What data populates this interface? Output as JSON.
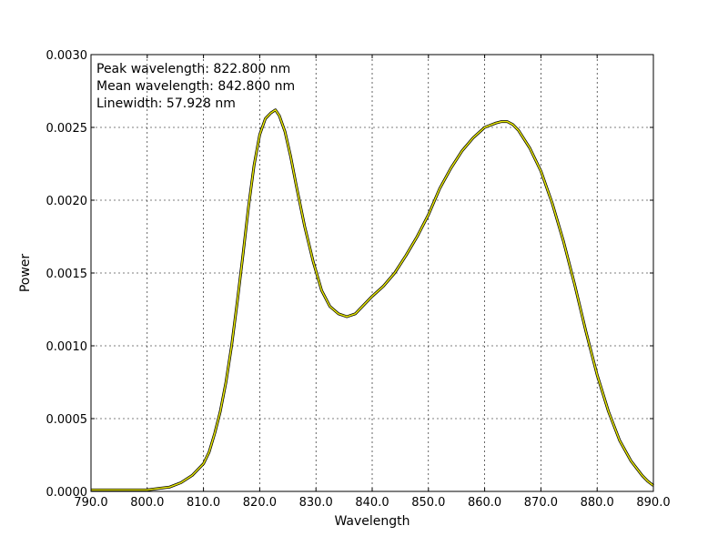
{
  "chart_data": {
    "type": "line",
    "title": "",
    "xlabel": "Wavelength",
    "ylabel": "Power",
    "xlim": [
      790,
      890
    ],
    "ylim": [
      0,
      0.003
    ],
    "x_ticks": [
      "790.0",
      "800.0",
      "810.0",
      "820.0",
      "830.0",
      "840.0",
      "850.0",
      "860.0",
      "870.0",
      "880.0",
      "890.0"
    ],
    "y_ticks": [
      "0.0000",
      "0.0005",
      "0.0010",
      "0.0015",
      "0.0020",
      "0.0025",
      "0.0030"
    ],
    "grid": true,
    "annotations": [
      "Peak wavelength: 822.800 nm",
      "Mean wavelength: 842.800 nm",
      "Linewidth: 57.928 nm"
    ],
    "line_color": "#e6e600",
    "outline_color": "#000000",
    "series": [
      {
        "x": [
          790,
          795,
          800,
          802,
          804,
          806,
          808,
          810,
          811,
          812,
          813,
          814,
          815,
          816,
          817,
          818,
          819,
          820,
          821,
          822,
          822.8,
          823.5,
          824.5,
          825.5,
          826.5,
          828,
          829.5,
          831,
          832.5,
          834,
          835.5,
          837,
          838.5,
          840,
          842,
          844,
          846,
          848,
          850,
          852,
          854,
          856,
          858,
          860,
          862,
          863,
          864,
          865,
          866,
          868,
          870,
          872,
          874,
          876,
          878,
          880,
          882,
          884,
          886,
          888,
          889,
          890
        ],
        "y": [
          1e-05,
          1e-05,
          1e-05,
          2e-05,
          3e-05,
          6e-05,
          0.00011,
          0.00019,
          0.00027,
          0.0004,
          0.00055,
          0.00075,
          0.001,
          0.0013,
          0.00162,
          0.00195,
          0.00224,
          0.00245,
          0.00256,
          0.0026,
          0.00262,
          0.00258,
          0.00247,
          0.0023,
          0.0021,
          0.00182,
          0.00158,
          0.00138,
          0.00127,
          0.00122,
          0.0012,
          0.00122,
          0.00128,
          0.00134,
          0.00141,
          0.0015,
          0.00162,
          0.00175,
          0.0019,
          0.00208,
          0.00222,
          0.00234,
          0.00243,
          0.0025,
          0.00253,
          0.00254,
          0.00254,
          0.00252,
          0.00248,
          0.00236,
          0.0022,
          0.00198,
          0.00172,
          0.00142,
          0.0011,
          0.0008,
          0.00055,
          0.00035,
          0.00021,
          0.00011,
          7e-05,
          4e-05
        ]
      }
    ]
  }
}
